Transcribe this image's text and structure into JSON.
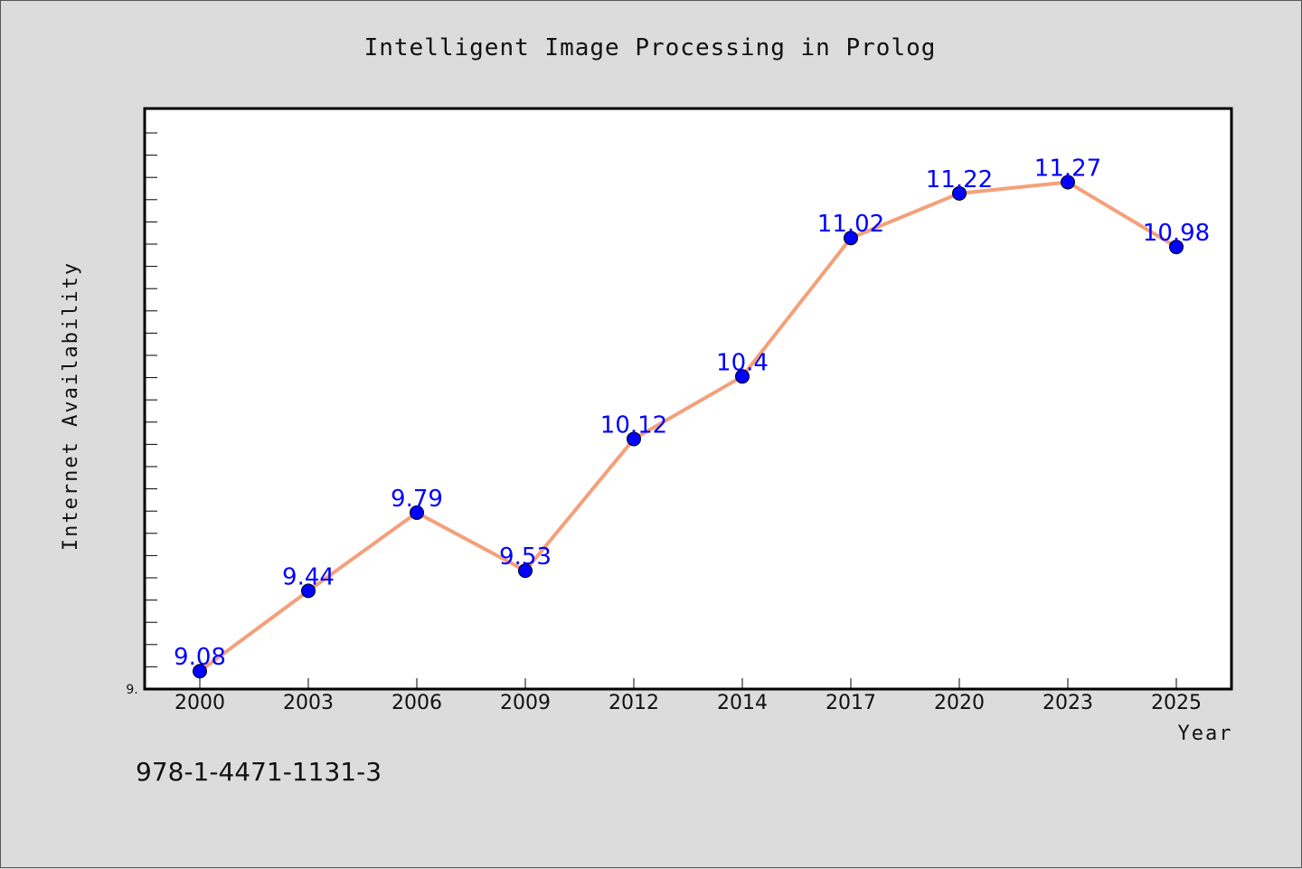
{
  "chart_data": {
    "type": "line",
    "title": "Intelligent Image Processing in Prolog",
    "xlabel": "Year",
    "ylabel": "Internet Availability",
    "categories": [
      "2000",
      "2003",
      "2006",
      "2009",
      "2012",
      "2014",
      "2017",
      "2020",
      "2023",
      "2025"
    ],
    "series": [
      {
        "values": [
          9.08,
          9.44,
          9.79,
          9.53,
          10.12,
          10.4,
          11.02,
          11.22,
          11.27,
          10.98
        ],
        "point_labels": [
          "9.08",
          "9.44",
          "9.79",
          "9.53",
          "10.12",
          "10.4",
          "11.02",
          "11.22",
          "11.27",
          "10.98"
        ],
        "line_color": "#f4a07a",
        "marker_color": "#0000ff"
      }
    ],
    "ylim": [
      9.0,
      11.6
    ],
    "y_tick_label": "9.",
    "grid": false
  },
  "footer": {
    "isbn": "978-1-4471-1131-3"
  },
  "colors": {
    "background": "#dcdcdc",
    "plot_background": "#ffffff",
    "line": "#f4a07a",
    "marker": "#0000ff",
    "data_label": "#0000ff"
  }
}
